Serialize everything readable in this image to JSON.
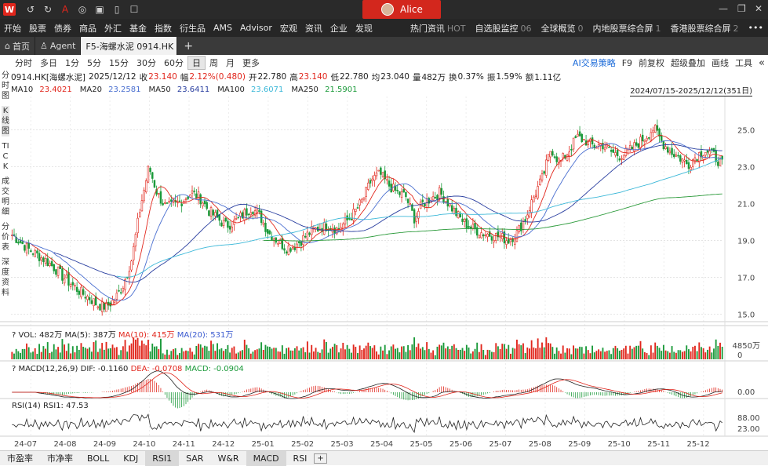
{
  "titlebar": {
    "logo": "W",
    "user": "Alice",
    "icons": [
      "undo-icon",
      "redo-icon",
      "text-icon",
      "chat-icon",
      "monitor-icon",
      "doc-icon",
      "bell-icon"
    ]
  },
  "menubar": {
    "left": [
      "开始",
      "股票",
      "债券",
      "商品",
      "外汇",
      "基金",
      "指数",
      "衍生品",
      "AMS",
      "Advisor",
      "宏观",
      "资讯",
      "企业",
      "发现"
    ],
    "right": [
      {
        "label": "热门资讯",
        "count": "HOT"
      },
      {
        "label": "自选股监控",
        "count": "06"
      },
      {
        "label": "全球概览",
        "count": "0"
      },
      {
        "label": "内地股票综合屏",
        "count": "1"
      },
      {
        "label": "香港股票综合屏",
        "count": "2"
      }
    ],
    "more": "•••"
  },
  "tabs": [
    {
      "label": "首页",
      "icon": "home-icon"
    },
    {
      "label": "Agent",
      "icon": "agent-icon"
    },
    {
      "label": "F5-海螺水泥 0914.HK",
      "active": true
    }
  ],
  "toolbar": {
    "periods": [
      "分时",
      "多日",
      "1分",
      "5分",
      "15分",
      "30分",
      "60分",
      "日",
      "周",
      "月",
      "更多"
    ],
    "active_period": "日",
    "right": [
      "AI交易策略",
      "F9",
      "前复权",
      "超级叠加",
      "画线",
      "工具"
    ]
  },
  "info": {
    "code": "0914.HK[海螺水泥]",
    "date": "2025/12/12",
    "close_label": "收",
    "close": "23.140",
    "change_label": "幅",
    "change": "2.12%(0.480)",
    "open_label": "开",
    "open": "22.780",
    "high_label": "高",
    "high": "23.140",
    "low_label": "低",
    "low": "22.780",
    "avg_label": "均",
    "avg": "23.040",
    "vol_label": "量",
    "vol": "482万",
    "turnover_label": "换",
    "turnover": "0.37%",
    "amp_label": "振",
    "amp": "1.59%",
    "amount_label": "额",
    "amount": "1.11亿"
  },
  "ma": [
    {
      "label": "MA10",
      "value": "23.4021",
      "color": "#e1261c"
    },
    {
      "label": "MA20",
      "value": "23.2581",
      "color": "#4a6fd0"
    },
    {
      "label": "MA50",
      "value": "23.6411",
      "color": "#2a3fa0"
    },
    {
      "label": "MA100",
      "value": "23.6071",
      "color": "#3cb8d8"
    },
    {
      "label": "MA250",
      "value": "21.5901",
      "color": "#2b9a3a"
    }
  ],
  "date_range": "2024/07/15-2025/12/12(351日)",
  "sidebar": [
    "分时图",
    "K线图",
    "TICK",
    "成交明细",
    "分价表",
    "深度资料"
  ],
  "volume": {
    "q": "?",
    "text": "VOL: 482万",
    "ma5": "MA(5): 387万",
    "ma10": "MA(10): 415万",
    "ma20": "MA(20): 531万",
    "axis": [
      "4850万",
      "0"
    ]
  },
  "macd": {
    "q": "?",
    "text": "MACD(12,26,9) DIF: -0.1160",
    "dea": "DEA: -0.0708",
    "macd": "MACD: -0.0904",
    "axis": [
      "0.00"
    ]
  },
  "rsi": {
    "text": "RSI(14) RSI1: 47.53",
    "axis": [
      "88.00",
      "23.00"
    ]
  },
  "chart_data": {
    "type": "candlestick",
    "price_axis": [
      "25.0",
      "23.0",
      "21.0",
      "19.0",
      "17.0",
      "15.0"
    ],
    "ylim": [
      14.6,
      26.8
    ],
    "x_ticks": [
      "24-07",
      "24-08",
      "24-09",
      "24-10",
      "24-11",
      "24-12",
      "25-01",
      "25-02",
      "25-03",
      "25-04",
      "25-05",
      "25-06",
      "25-07",
      "25-08",
      "25-09",
      "25-10",
      "25-11",
      "25-12"
    ],
    "close_path": [
      19.3,
      18.9,
      18.5,
      18.2,
      17.9,
      17.5,
      17.0,
      16.6,
      16.2,
      15.9,
      15.5,
      15.4,
      15.8,
      16.6,
      18.0,
      20.8,
      23.0,
      21.5,
      20.8,
      20.9,
      21.2,
      21.6,
      21.3,
      20.6,
      20.2,
      19.8,
      20.0,
      20.4,
      20.8,
      20.3,
      19.4,
      19.0,
      18.6,
      18.7,
      19.1,
      19.5,
      19.7,
      19.8,
      19.6,
      20.0,
      20.5,
      21.2,
      22.3,
      22.6,
      22.0,
      21.6,
      21.4,
      20.2,
      21.0,
      21.3,
      21.6,
      21.0,
      20.4,
      19.9,
      19.6,
      19.4,
      19.3,
      19.2,
      19.0,
      19.4,
      20.2,
      21.4,
      22.4,
      24.0,
      23.2,
      23.8,
      24.6,
      24.4,
      24.1,
      24.2,
      23.8,
      23.6,
      23.8,
      24.2,
      24.6,
      25.1,
      24.3,
      23.8,
      23.5,
      23.1,
      23.6,
      23.9,
      23.6,
      23.1
    ]
  },
  "bottom_tabs": [
    "市盈率",
    "市净率",
    "BOLL",
    "KDJ",
    "RSI1",
    "SAR",
    "W&R",
    "MACD",
    "RSI"
  ],
  "bottom_active": [
    "RSI1",
    "MACD"
  ]
}
